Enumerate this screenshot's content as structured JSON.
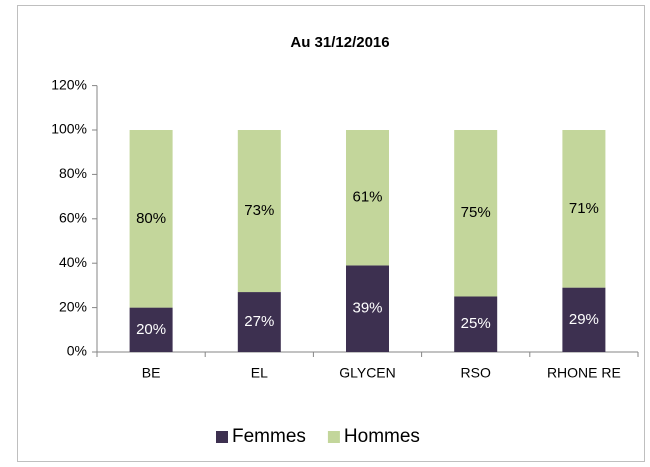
{
  "chart_data": {
    "type": "stacked_bar",
    "title": "Au 31/12/2016",
    "categories": [
      "BE",
      "EL",
      "GLYCEN",
      "RSO",
      "RHONE RE"
    ],
    "series": [
      {
        "name": "Femmes",
        "color": "#3d3050",
        "values": [
          20,
          27,
          39,
          25,
          29
        ],
        "value_labels": [
          "20%",
          "27%",
          "39%",
          "25%",
          "29%"
        ]
      },
      {
        "name": "Hommes",
        "color": "#c3d69b",
        "values": [
          80,
          73,
          61,
          75,
          71
        ],
        "value_labels": [
          "80%",
          "73%",
          "61%",
          "75%",
          "71%"
        ]
      }
    ],
    "ylim": [
      0,
      120
    ],
    "yticks": [
      {
        "value": 0,
        "label": "0%"
      },
      {
        "value": 20,
        "label": "20%"
      },
      {
        "value": 40,
        "label": "40%"
      },
      {
        "value": 60,
        "label": "60%"
      },
      {
        "value": 80,
        "label": "80%"
      },
      {
        "value": 100,
        "label": "100%"
      },
      {
        "value": 120,
        "label": "120%"
      }
    ],
    "grid": false,
    "legend": "bottom"
  }
}
